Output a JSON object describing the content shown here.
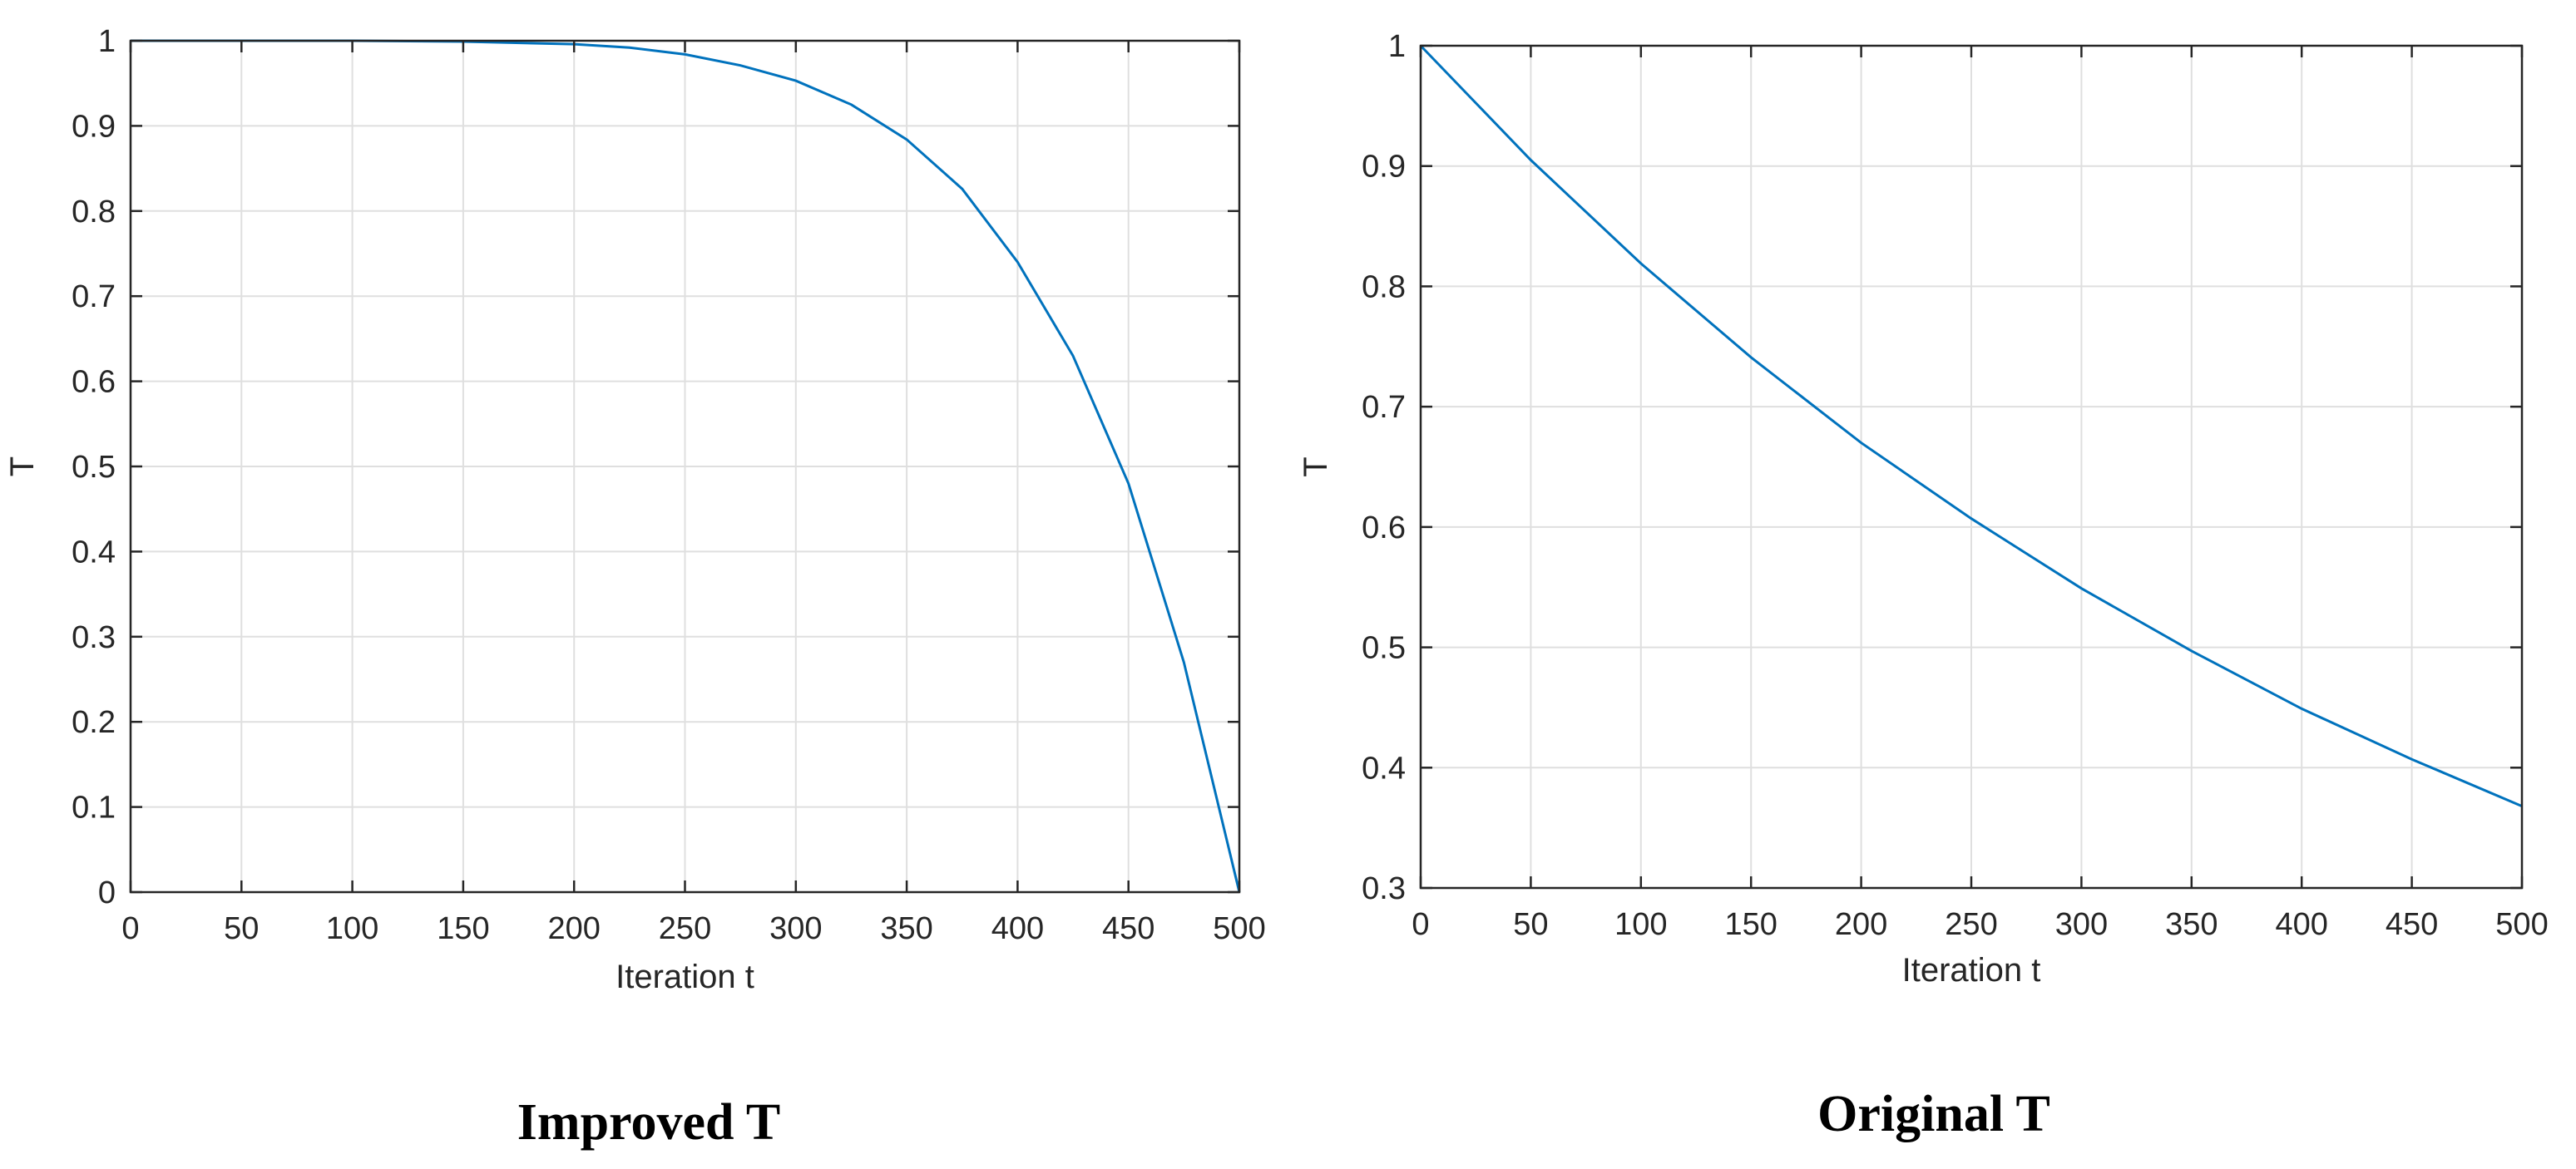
{
  "colors": {
    "line": "#0072BD",
    "axis": "#262626",
    "grid": "#dfdfdf"
  },
  "chart_data": [
    {
      "type": "line",
      "caption": "Improved T",
      "xlabel": "Iteration t",
      "ylabel": "T",
      "xlim": [
        0,
        500
      ],
      "ylim": [
        0,
        1
      ],
      "xticks": [
        0,
        50,
        100,
        150,
        200,
        250,
        300,
        350,
        400,
        450,
        500
      ],
      "yticks": [
        0,
        0.1,
        0.2,
        0.3,
        0.4,
        0.5,
        0.6,
        0.7,
        0.8,
        0.9,
        1
      ],
      "ytick_labels": [
        "0",
        "0.1",
        "0.2",
        "0.3",
        "0.4",
        "0.5",
        "0.6",
        "0.7",
        "0.8",
        "0.9",
        "1"
      ],
      "grid": true,
      "series": [
        {
          "x": [
            0,
            50,
            100,
            150,
            200,
            225,
            250,
            275,
            300,
            325,
            350,
            375,
            400,
            425,
            450,
            475,
            500
          ],
          "y": [
            1.0,
            1.0,
            1.0,
            0.999,
            0.996,
            0.992,
            0.984,
            0.971,
            0.953,
            0.925,
            0.884,
            0.826,
            0.74,
            0.63,
            0.48,
            0.27,
            0.0
          ]
        }
      ]
    },
    {
      "type": "line",
      "caption": "Original T",
      "xlabel": "Iteration t",
      "ylabel": "T",
      "xlim": [
        0,
        500
      ],
      "ylim": [
        0.3,
        1
      ],
      "xticks": [
        0,
        50,
        100,
        150,
        200,
        250,
        300,
        350,
        400,
        450,
        500
      ],
      "yticks": [
        0.3,
        0.4,
        0.5,
        0.6,
        0.7,
        0.8,
        0.9,
        1
      ],
      "ytick_labels": [
        "0.3",
        "0.4",
        "0.5",
        "0.6",
        "0.7",
        "0.8",
        "0.9",
        "1"
      ],
      "grid": true,
      "series": [
        {
          "x": [
            0,
            50,
            100,
            150,
            200,
            250,
            300,
            350,
            400,
            450,
            500
          ],
          "y": [
            1.0,
            0.905,
            0.819,
            0.741,
            0.67,
            0.607,
            0.549,
            0.497,
            0.449,
            0.407,
            0.368
          ]
        }
      ]
    }
  ]
}
